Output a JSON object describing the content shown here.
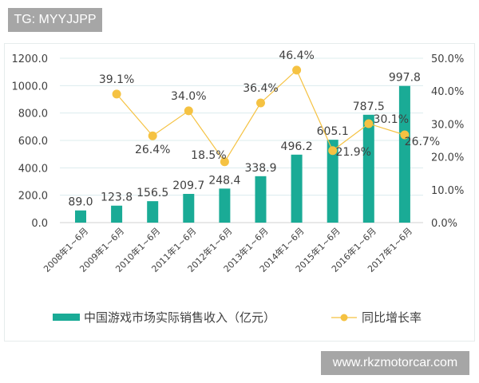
{
  "watermarks": {
    "top_left": "TG: MYYJJPP",
    "bottom_right": "www.rkzmotorcar.com"
  },
  "chart_data": {
    "type": "bar+line",
    "categories": [
      "2008年1~6月",
      "2009年1~6月",
      "2010年1~6月",
      "2011年1~6月",
      "2012年1~6月",
      "2013年1~6月",
      "2014年1~6月",
      "2015年1~6月",
      "2016年1~6月",
      "2017年1~6月"
    ],
    "series": [
      {
        "name": "中国游戏市场实际销售收入（亿元）",
        "type": "bar",
        "axis": "left",
        "color": "#1aab96",
        "values": [
          89.0,
          123.8,
          156.5,
          209.7,
          248.4,
          338.9,
          496.2,
          605.1,
          787.5,
          997.8
        ],
        "labels": [
          "89.0",
          "123.8",
          "156.5",
          "209.7",
          "248.4",
          "338.9",
          "496.2",
          "605.1",
          "787.5",
          "997.8"
        ]
      },
      {
        "name": "同比增长率",
        "type": "line",
        "axis": "right",
        "color": "#f5c242",
        "values": [
          null,
          39.1,
          26.4,
          34.0,
          18.5,
          36.4,
          46.4,
          21.9,
          30.1,
          26.7
        ],
        "labels": [
          "",
          "39.1%",
          "26.4%",
          "34.0%",
          "18.5%",
          "36.4%",
          "46.4%",
          "21.9%",
          "30.1%",
          "26.7%"
        ]
      }
    ],
    "left_axis": {
      "range": [
        0,
        1200
      ],
      "ticks": [
        "0.0",
        "200.0",
        "400.0",
        "600.0",
        "800.0",
        "1000.0",
        "1200.0"
      ]
    },
    "right_axis": {
      "range": [
        0,
        50
      ],
      "ticks": [
        "0.0%",
        "10.0%",
        "20.0%",
        "30.0%",
        "40.0%",
        "50.0%"
      ]
    },
    "grid": true,
    "legend": "bottom"
  }
}
